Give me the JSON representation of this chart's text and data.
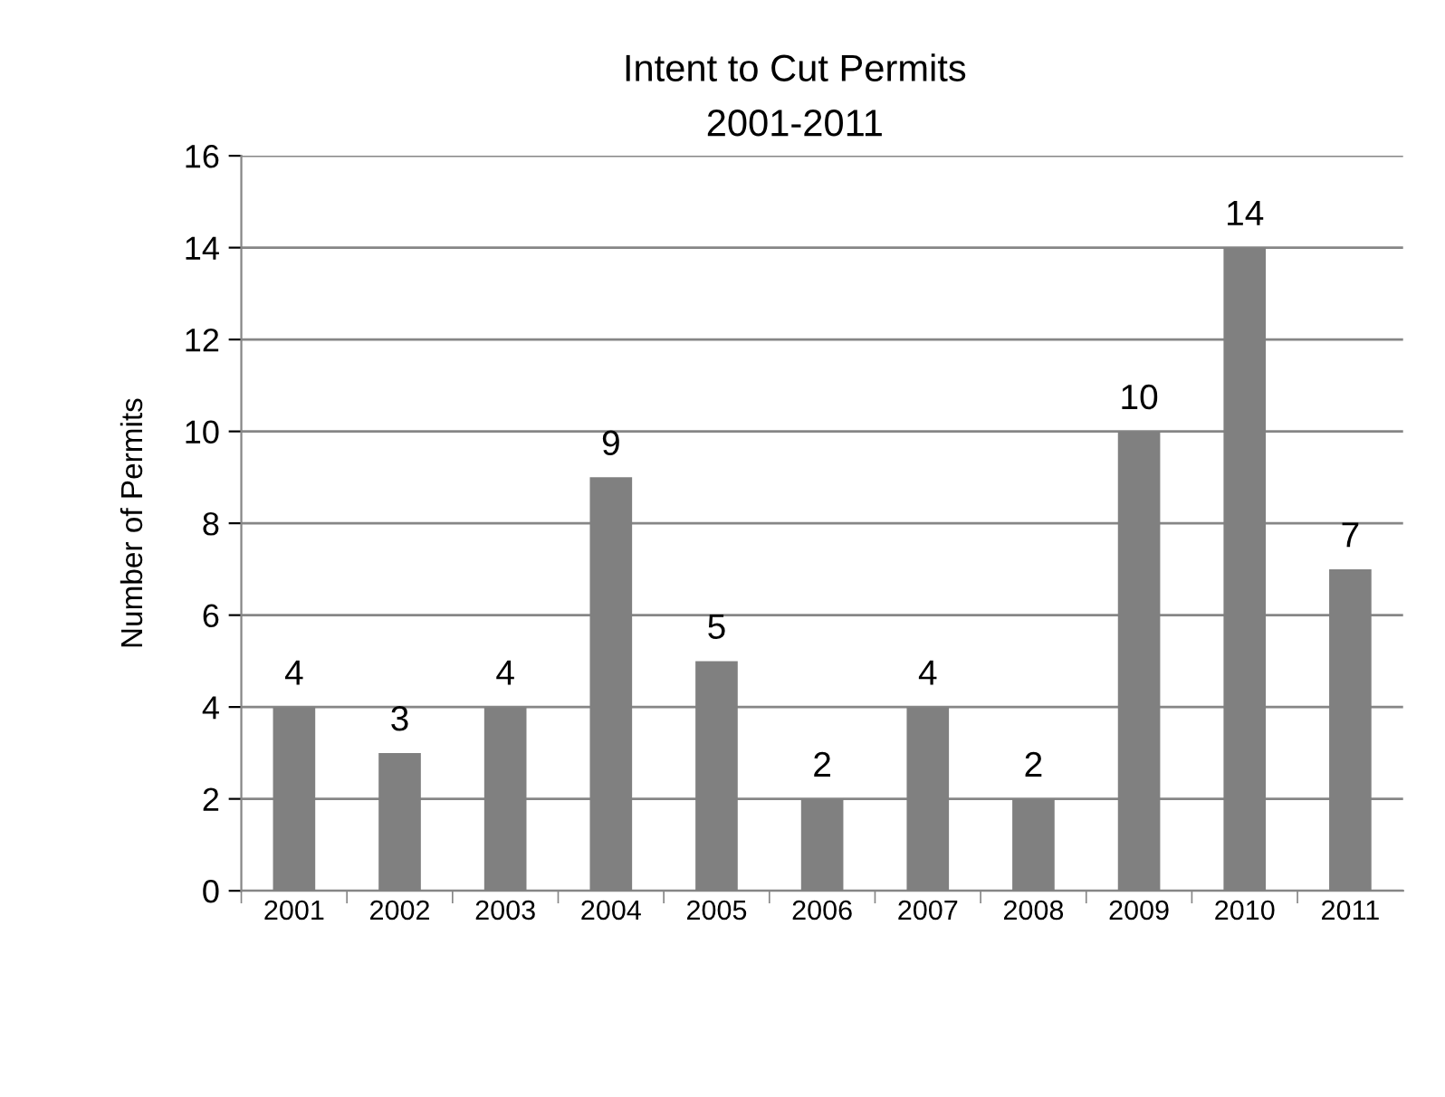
{
  "chart_data": {
    "type": "bar",
    "title": "Intent to Cut Permits",
    "subtitle": "2001-2011",
    "ylabel": "Number of Permits",
    "categories": [
      "2001",
      "2002",
      "2003",
      "2004",
      "2005",
      "2006",
      "2007",
      "2008",
      "2009",
      "2010",
      "2011"
    ],
    "values": [
      4,
      3,
      4,
      9,
      5,
      2,
      4,
      2,
      10,
      14,
      7
    ],
    "color": "#808080",
    "ylim": [
      0,
      16
    ],
    "yticks": [
      0,
      2,
      4,
      6,
      8,
      10,
      12,
      14,
      16
    ],
    "grid": "y",
    "data_labels": true
  }
}
